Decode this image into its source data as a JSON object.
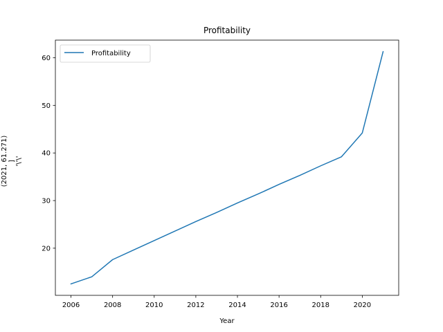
{
  "chart_data": {
    "type": "line",
    "title": "Profitability",
    "xlabel": "Year",
    "ylabel_lines": [
      "(2021, 61.271)",
      "]",
      "'\\'\\'"
    ],
    "xlim": [
      2005.25,
      2021.75
    ],
    "ylim": [
      10.1,
      63.7
    ],
    "xticks": [
      2006,
      2008,
      2010,
      2012,
      2014,
      2016,
      2018,
      2020
    ],
    "yticks": [
      20,
      30,
      40,
      50,
      60
    ],
    "grid": false,
    "legend_position": "top-left",
    "series": [
      {
        "name": "Profitability",
        "color": "#1f77b4",
        "x": [
          2006,
          2007,
          2008,
          2009,
          2010,
          2011,
          2012,
          2013,
          2014,
          2015,
          2016,
          2017,
          2018,
          2019,
          2020,
          2021
        ],
        "y": [
          12.5,
          14.0,
          17.6,
          19.6,
          21.6,
          23.6,
          25.6,
          27.5,
          29.5,
          31.4,
          33.4,
          35.3,
          37.3,
          39.2,
          44.2,
          61.271
        ]
      }
    ]
  }
}
